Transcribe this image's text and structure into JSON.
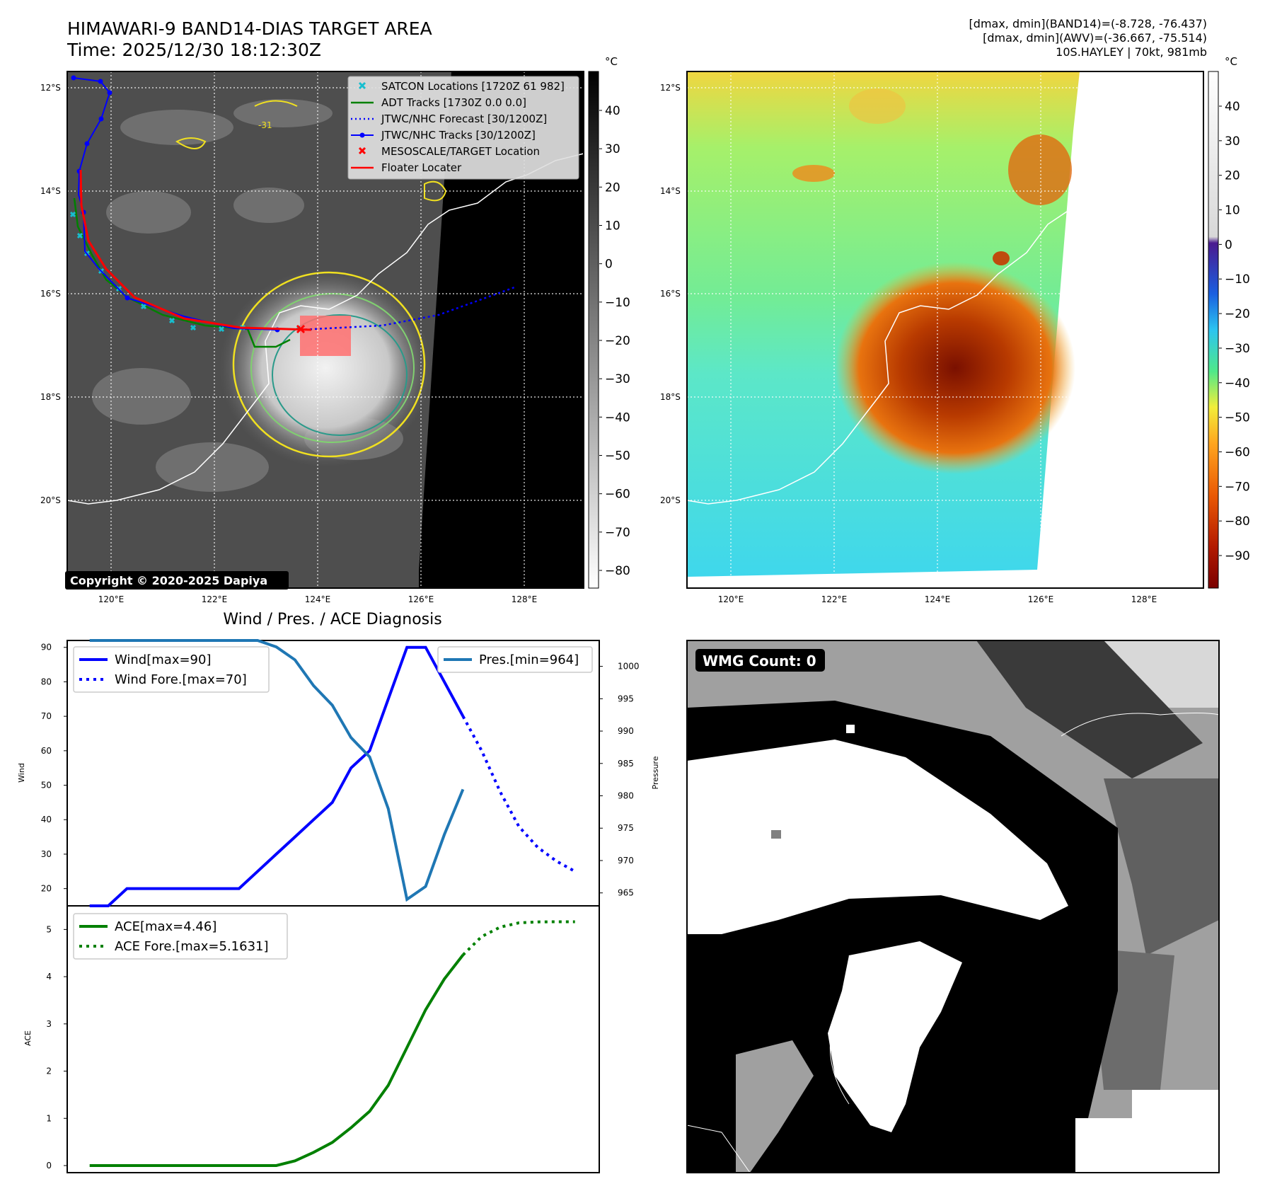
{
  "header": {
    "title_line1": "HIMAWARI-9 BAND14-DIAS TARGET AREA",
    "title_line2": "Time: 2025/12/30 18:12:30Z",
    "info_line1": "[dmax, dmin](BAND14)=(-8.728, -76.437)",
    "info_line2": "[dmax, dmin](AWV)=(-36.667, -75.514)",
    "info_line3": "10S.HAYLEY | 70kt, 981mb"
  },
  "map": {
    "lat_labels": [
      "12°S",
      "14°S",
      "16°S",
      "18°S",
      "20°S"
    ],
    "lon_labels": [
      "120°E",
      "122°E",
      "124°E",
      "126°E",
      "128°E"
    ],
    "copyright": "Copyright © 2020-2025 Dapiya",
    "contour_label": "-31",
    "legend": [
      {
        "label": "SATCON Locations [1720Z 61 982]",
        "color": "#17becf",
        "marker": "x"
      },
      {
        "label": "ADT Tracks [1730Z 0.0 0.0]",
        "color": "#008000",
        "marker": "line"
      },
      {
        "label": "JTWC/NHC Forecast [30/1200Z]",
        "color": "#0000ff",
        "marker": "dotted"
      },
      {
        "label": "JTWC/NHC Tracks [30/1200Z]",
        "color": "#0000ff",
        "marker": "line-dot"
      },
      {
        "label": "MESOSCALE/TARGET Location",
        "color": "#ff0000",
        "marker": "x"
      },
      {
        "label": "Floater Locater",
        "color": "#ff0000",
        "marker": "line"
      }
    ]
  },
  "colorbar_gray": {
    "unit": "°C",
    "ticks": [
      "40",
      "30",
      "20",
      "10",
      "0",
      "−10",
      "−20",
      "−30",
      "−40",
      "−50",
      "−60",
      "−70",
      "−80"
    ]
  },
  "colorbar_color": {
    "unit": "°C",
    "ticks": [
      "40",
      "30",
      "20",
      "10",
      "0",
      "−10",
      "−20",
      "−30",
      "−40",
      "−50",
      "−60",
      "−70",
      "−80",
      "−90"
    ]
  },
  "wmg": {
    "label": "WMG Count: 0"
  },
  "chart_data": [
    {
      "type": "line",
      "title": "Wind / Pres. / ACE Diagnosis",
      "ylabel": "Wind",
      "ylabel_right": "Pressure",
      "ylim": [
        15,
        92
      ],
      "ylim_right": [
        963,
        1004
      ],
      "yticks": [
        20,
        30,
        40,
        50,
        60,
        70,
        80,
        90
      ],
      "yticks_right": [
        965,
        970,
        975,
        980,
        985,
        990,
        995,
        1000
      ],
      "series": [
        {
          "name": "Wind[max=90]",
          "color": "#0000ff",
          "style": "solid",
          "x": [
            0,
            1,
            2,
            3,
            4,
            5,
            6,
            7,
            8,
            9,
            10,
            11,
            12,
            13,
            14,
            15,
            16,
            17,
            18,
            19,
            20
          ],
          "values": [
            15,
            15,
            20,
            20,
            20,
            20,
            20,
            20,
            20,
            25,
            30,
            35,
            40,
            45,
            55,
            60,
            75,
            90,
            90,
            80,
            70
          ]
        },
        {
          "name": "Wind Fore.[max=70]",
          "color": "#0000ff",
          "style": "dotted",
          "x": [
            20,
            21,
            22,
            23,
            24,
            25,
            26
          ],
          "values": [
            70,
            60,
            48,
            38,
            32,
            28,
            25
          ]
        },
        {
          "name": "Pres.[min=964]",
          "color": "#1f77b4",
          "style": "solid",
          "axis": "right",
          "x": [
            0,
            1,
            2,
            3,
            4,
            5,
            6,
            7,
            8,
            9,
            10,
            11,
            12,
            13,
            14,
            15,
            16,
            17,
            18,
            19,
            20
          ],
          "values": [
            1004,
            1004,
            1004,
            1004,
            1004,
            1004,
            1004,
            1004,
            1004,
            1004,
            1003,
            1001,
            997,
            994,
            989,
            986,
            978,
            964,
            966,
            974,
            981
          ]
        }
      ]
    },
    {
      "type": "line",
      "ylabel": "ACE",
      "ylim": [
        -0.15,
        5.5
      ],
      "yticks": [
        0,
        1,
        2,
        3,
        4,
        5
      ],
      "series": [
        {
          "name": "ACE[max=4.46]",
          "color": "#008000",
          "style": "solid",
          "x": [
            0,
            1,
            2,
            3,
            4,
            5,
            6,
            7,
            8,
            9,
            10,
            11,
            12,
            13,
            14,
            15,
            16,
            17,
            18,
            19,
            20
          ],
          "values": [
            0,
            0,
            0,
            0,
            0,
            0,
            0,
            0,
            0,
            0,
            0,
            0.1,
            0.28,
            0.49,
            0.8,
            1.15,
            1.7,
            2.5,
            3.3,
            3.95,
            4.46
          ]
        },
        {
          "name": "ACE Fore.[max=5.1631]",
          "color": "#008000",
          "style": "dotted",
          "x": [
            20,
            21,
            22,
            23,
            24,
            25,
            26
          ],
          "values": [
            4.46,
            4.85,
            5.05,
            5.14,
            5.16,
            5.163,
            5.163
          ]
        }
      ]
    }
  ]
}
